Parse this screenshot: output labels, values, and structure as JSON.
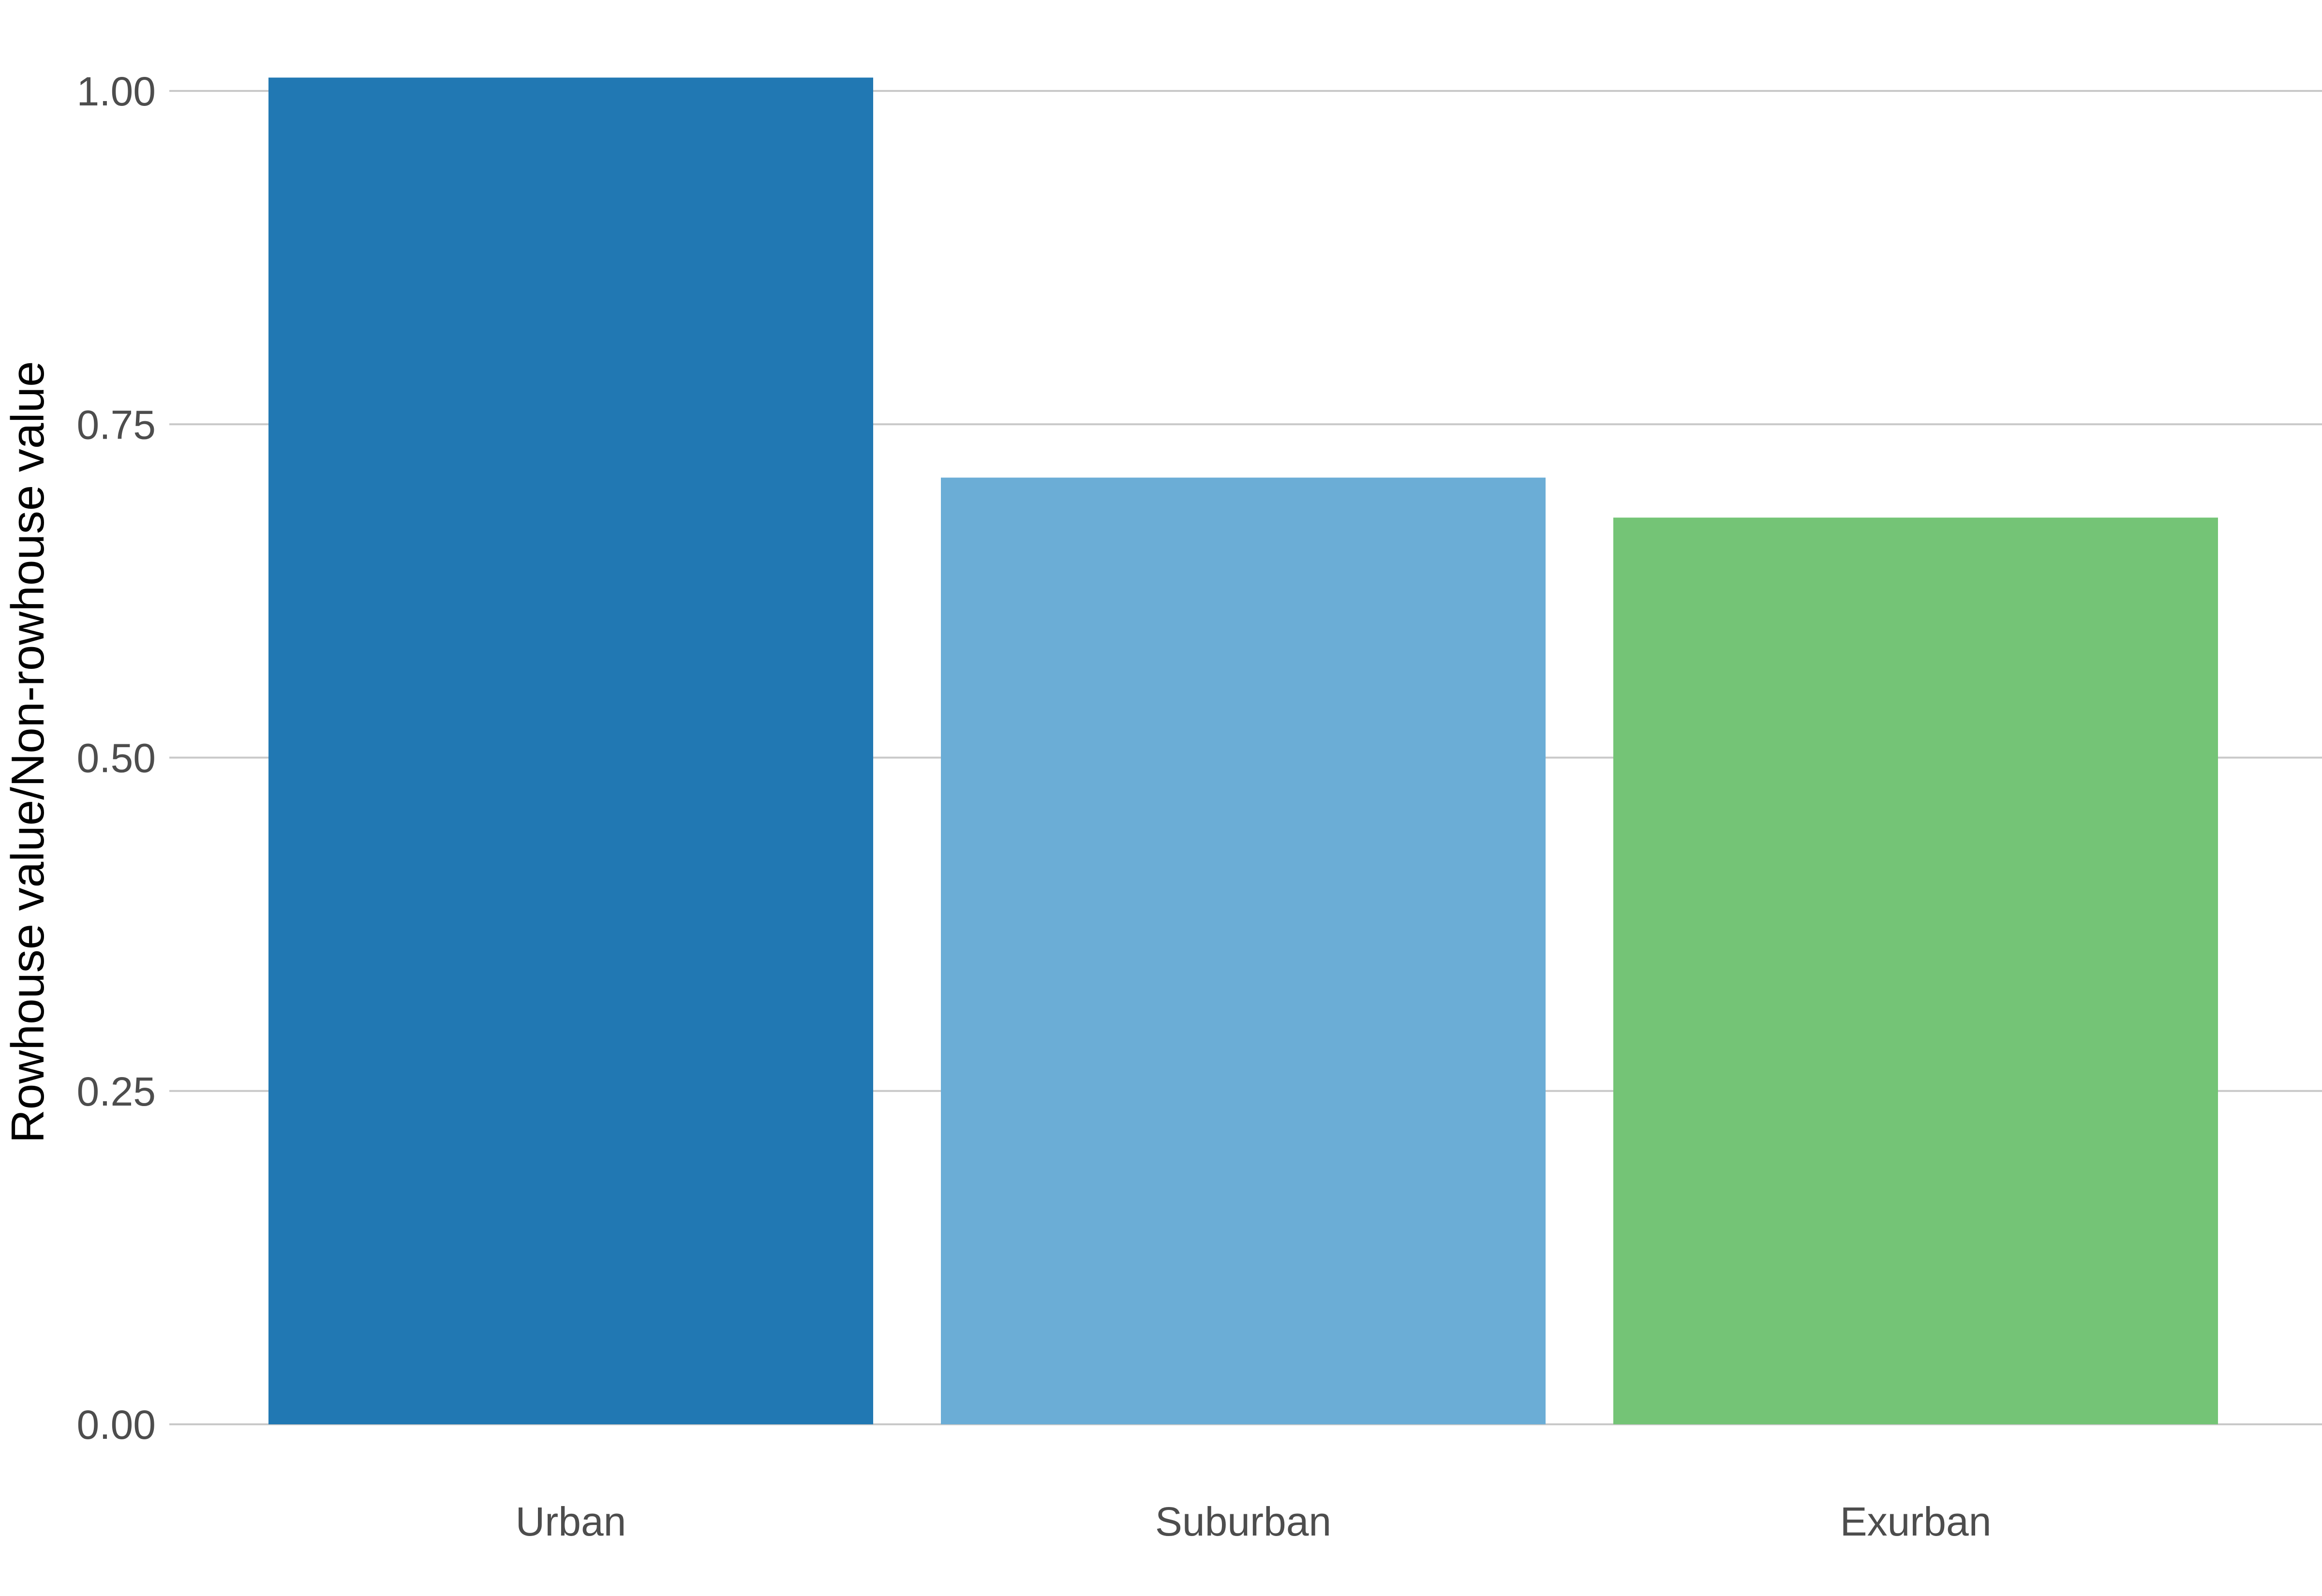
{
  "chart_data": {
    "type": "bar",
    "title": "",
    "xlabel": "",
    "ylabel": "Rowhouse value/Non-rowhouse value",
    "categories": [
      "Urban",
      "Suburban",
      "Exurban"
    ],
    "values": [
      1.01,
      0.71,
      0.68
    ],
    "colors": [
      "#2178b3",
      "#6badd6",
      "#74c476"
    ],
    "ylim": [
      0,
      1.0
    ],
    "yticks": [
      0.0,
      0.25,
      0.5,
      0.75,
      1.0
    ],
    "ytick_labels": [
      "0.00",
      "0.25",
      "0.50",
      "0.75",
      "1.00"
    ],
    "grid": true,
    "legend": "none"
  }
}
